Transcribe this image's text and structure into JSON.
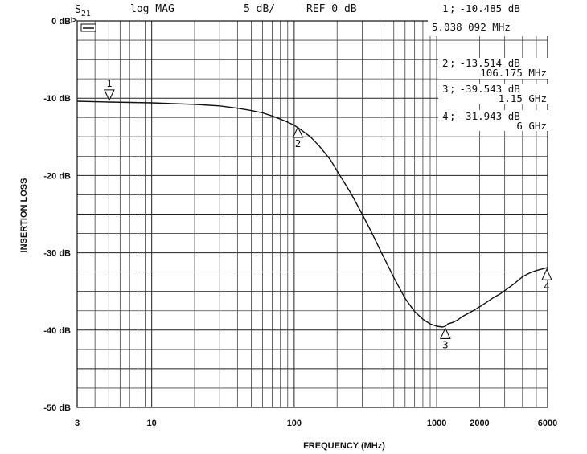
{
  "header": {
    "param": "S",
    "param_sub": "21",
    "format": "log MAG",
    "scale": "5 dB/",
    "ref": "REF 0 dB"
  },
  "markers": [
    {
      "num": "1",
      "value": "-10.485 dB",
      "freq": "5.038 092 MHz"
    },
    {
      "num": "2",
      "value": "-13.514 dB",
      "freq": "106.175 MHz"
    },
    {
      "num": "3",
      "value": "-39.543 dB",
      "freq": "1.15 GHz"
    },
    {
      "num": "4",
      "value": "-31.943 dB",
      "freq": "6 GHz"
    }
  ],
  "chart_data": {
    "type": "line",
    "xscale": "log",
    "xlabel": "FREQUENCY (MHz)",
    "ylabel": "INSERTION LOSS",
    "xlim": [
      3,
      6000
    ],
    "ylim": [
      -50,
      0
    ],
    "grid": true,
    "x_ticks": [
      "3",
      "10",
      "100",
      "1000",
      "2000",
      "6000"
    ],
    "x_tick_values": [
      3,
      10,
      100,
      1000,
      2000,
      6000
    ],
    "y_ticks": [
      "0 dB",
      "-10 dB",
      "-20 dB",
      "-30 dB",
      "-40 dB",
      "-50 dB"
    ],
    "y_tick_values": [
      0,
      -10,
      -20,
      -30,
      -40,
      -50
    ],
    "series": [
      {
        "x": [
          3,
          5,
          10,
          20,
          30,
          40,
          50,
          60,
          70,
          80,
          90,
          100,
          110,
          130,
          150,
          180,
          200,
          250,
          300,
          350,
          400,
          500,
          600,
          700,
          800,
          900,
          1000,
          1100,
          1150,
          1200,
          1300,
          1400,
          1500,
          1600,
          1800,
          2000,
          2200,
          2500,
          2800,
          3000,
          3500,
          4000,
          4500,
          5000,
          5500,
          6000
        ],
        "y": [
          -10.4,
          -10.5,
          -10.6,
          -10.8,
          -11.0,
          -11.3,
          -11.6,
          -11.9,
          -12.3,
          -12.7,
          -13.1,
          -13.5,
          -14.0,
          -15.0,
          -16.2,
          -18.0,
          -19.4,
          -22.3,
          -25.0,
          -27.4,
          -29.6,
          -33.2,
          -35.9,
          -37.6,
          -38.6,
          -39.2,
          -39.5,
          -39.6,
          -39.5,
          -39.2,
          -39.0,
          -38.7,
          -38.3,
          -38.0,
          -37.5,
          -37.0,
          -36.5,
          -35.8,
          -35.3,
          -34.9,
          -34.0,
          -33.1,
          -32.6,
          -32.3,
          -32.1,
          -31.9
        ]
      }
    ],
    "marker_points": [
      {
        "label": "1",
        "x": 5.038,
        "y": -10.485
      },
      {
        "label": "2",
        "x": 106.175,
        "y": -13.514
      },
      {
        "label": "3",
        "x": 1150,
        "y": -39.543
      },
      {
        "label": "4",
        "x": 6000,
        "y": -31.943
      }
    ]
  }
}
